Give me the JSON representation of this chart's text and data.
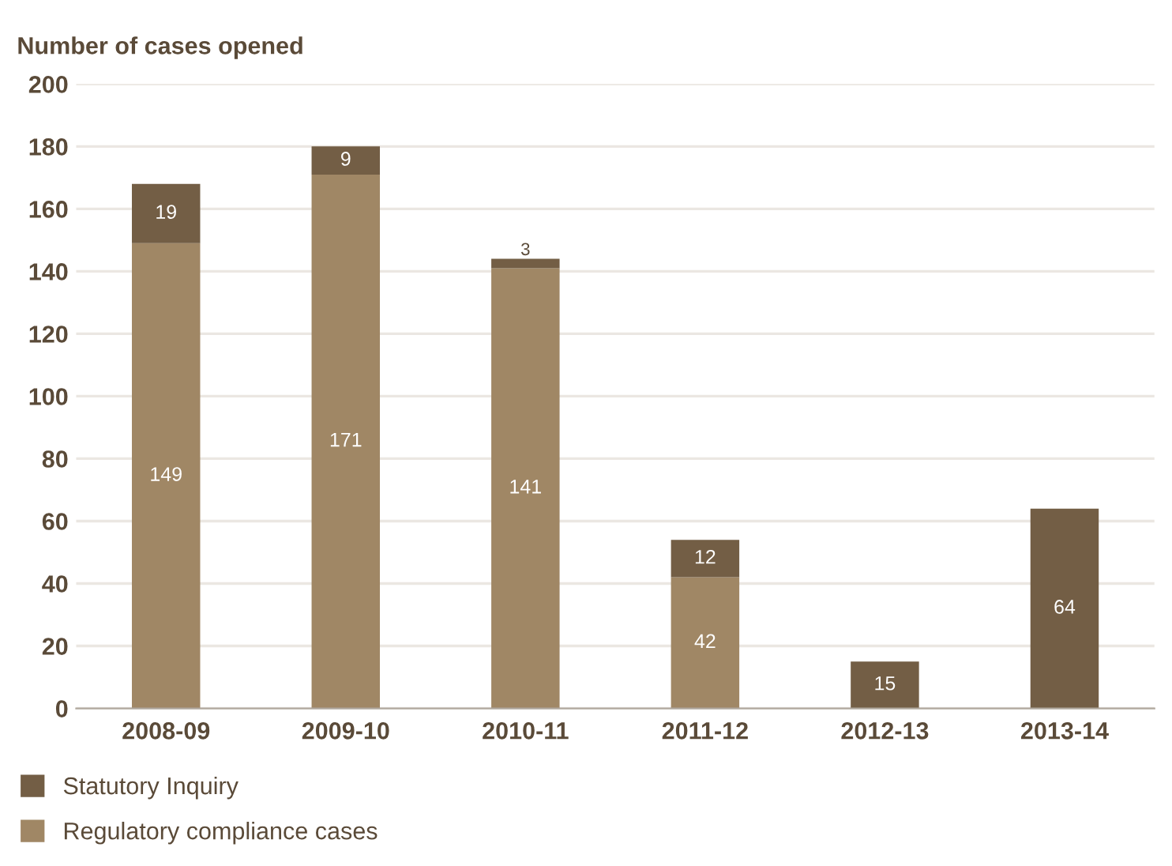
{
  "chart_data": {
    "type": "bar",
    "stacked": true,
    "ylabel": "Number of cases opened",
    "categories": [
      "2008-09",
      "2009-10",
      "2010-11",
      "2011-12",
      "2012-13",
      "2013-14"
    ],
    "series": [
      {
        "name": "Regulatory compliance cases",
        "color": "#a08765",
        "values": [
          149,
          171,
          141,
          42,
          null,
          null
        ]
      },
      {
        "name": "Statutory Inquiry",
        "color": "#735e45",
        "values": [
          19,
          9,
          3,
          12,
          15,
          64
        ]
      }
    ],
    "ylim": [
      0,
      200
    ],
    "yticks": [
      0,
      20,
      40,
      60,
      80,
      100,
      120,
      140,
      160,
      180,
      200
    ],
    "grid": "y",
    "legend": "bottom left",
    "data_labels": true
  }
}
